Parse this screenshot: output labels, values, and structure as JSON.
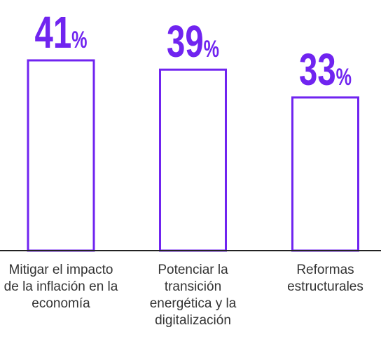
{
  "chart_data": {
    "type": "bar",
    "categories": [
      "Mitigar el impacto de la inflación en la economía",
      "Potenciar la transición energética y la digitalización",
      "Reformas estructurales"
    ],
    "values": [
      41,
      39,
      33
    ],
    "value_labels": [
      "41%",
      "39%",
      "33%"
    ],
    "color": "#7024f0"
  }
}
